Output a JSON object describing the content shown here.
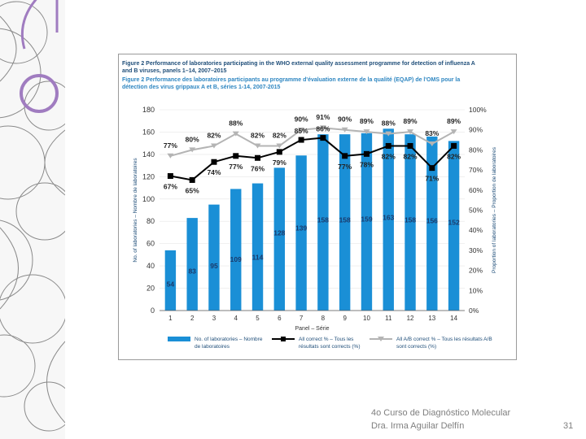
{
  "colors": {
    "bar": "#1a8fd6",
    "all_correct": "#000000",
    "ab_correct": "#b4b4b4",
    "title_dark": "#1f4e79",
    "title_light": "#2e86c1"
  },
  "slide": {
    "footer_line1": "4o Curso de Diagnóstico Molecular",
    "footer_line2": "Dra. Irma Aguilar Delfín",
    "page_number": "31"
  },
  "figure": {
    "title_en_1": "Figure 2  Performance of laboratories participating in the WHO external quality assessment programme for detection of influenza A",
    "title_en_2": "and B viruses, panels 1–14, 2007–2015",
    "title_fr_1": "Figure 2  Performance des laboratoires participants au programme d'évaluation externe de la qualité (EQAP) de l'OMS pour la",
    "title_fr_2": "détection des virus grippaux A et B, séries 1-14, 2007-2015"
  },
  "chart_data": {
    "type": "bar",
    "categories": [
      "1",
      "2",
      "3",
      "4",
      "5",
      "6",
      "7",
      "8",
      "9",
      "10",
      "11",
      "12",
      "13",
      "14"
    ],
    "xlabel": "Panel – Série",
    "ylabel": "No. of laboratories – Nombre de laboratoires",
    "y2label": "Proportion of laboratories – Proportion de laboratoires",
    "ylim": [
      0,
      180
    ],
    "y2lim": [
      0,
      100
    ],
    "yticks": [
      "0",
      "20",
      "40",
      "60",
      "80",
      "100",
      "120",
      "140",
      "160",
      "180"
    ],
    "y2ticks": [
      "0%",
      "10%",
      "20%",
      "30%",
      "40%",
      "50%",
      "60%",
      "70%",
      "80%",
      "90%",
      "100%"
    ],
    "series": [
      {
        "name": "No. of laboratories – Nombre de laboratoires",
        "kind": "bar",
        "values": [
          54,
          83,
          95,
          109,
          114,
          128,
          139,
          158,
          158,
          159,
          163,
          158,
          156,
          152
        ],
        "labels": [
          "54",
          "83",
          "95",
          "109",
          "114",
          "128",
          "139",
          "158",
          "158",
          "159",
          "163",
          "158",
          "156",
          "152"
        ]
      },
      {
        "name": "All correct % – Tous les résultats sont corrects (%)",
        "kind": "line",
        "values": [
          67,
          65,
          74,
          77,
          76,
          79,
          85,
          86,
          77,
          78,
          82,
          82,
          71,
          82
        ],
        "labels": [
          "67%",
          "65%",
          "74%",
          "77%",
          "76%",
          "79%",
          "85%",
          "86%",
          "77%",
          "78%",
          "82%",
          "82%",
          "71%",
          "82%"
        ]
      },
      {
        "name": "All A/B correct % – Tous les résultats A/B sont corrects (%)",
        "kind": "line",
        "values": [
          77,
          80,
          82,
          88,
          82,
          82,
          90,
          91,
          90,
          89,
          88,
          89,
          83,
          89
        ],
        "labels": [
          "77%",
          "80%",
          "82%",
          "88%",
          "82%",
          "82%",
          "90%",
          "91%",
          "90%",
          "89%",
          "88%",
          "89%",
          "83%",
          "89%"
        ]
      }
    ],
    "legend": [
      {
        "line1": "No. of laboratories – Nombre",
        "line2": "de laboratoires"
      },
      {
        "line1": "All correct % – Tous les",
        "line2": "résultats sont corrects (%)"
      },
      {
        "line1": "All A/B correct % – Tous les résultats A/B",
        "line2": "sont corrects (%)"
      }
    ]
  }
}
